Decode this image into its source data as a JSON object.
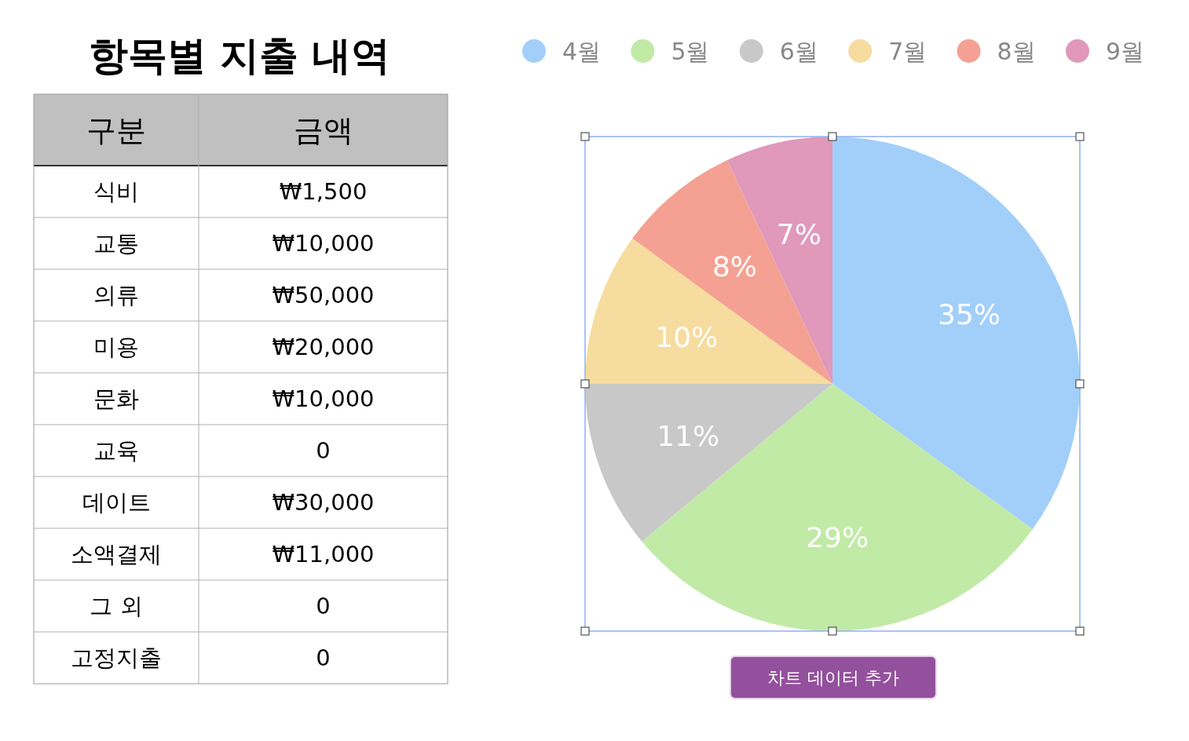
{
  "chart_data": [
    {
      "type": "other",
      "title": "항목별 지출 내역",
      "annotations": [
        "구분",
        "금액",
        "식비",
        "₩1,500",
        "교통",
        "₩10,000",
        "의류",
        "₩50,000",
        "미용",
        "₩20,000",
        "문화",
        "₩10,000",
        "교육",
        "0",
        "데이트",
        "₩30,000",
        "소액결제",
        "₩11,000",
        "그 외",
        "0",
        "고정지출",
        "0"
      ]
    },
    {
      "type": "pie",
      "categories": [
        "4월",
        "5월",
        "6월",
        "7월",
        "8월",
        "9월"
      ],
      "values": [
        35,
        29,
        11,
        10,
        8,
        7
      ],
      "colors": [
        "#a2cffa",
        "#c1eaa6",
        "#c8c8c8",
        "#f6dc9e",
        "#f4a193",
        "#e098bb"
      ],
      "value_labels": [
        "35%",
        "29%",
        "11%",
        "10%",
        "8%",
        "7%"
      ],
      "legend": "top",
      "annotations": [
        "차트 데이터 추가"
      ]
    }
  ]
}
